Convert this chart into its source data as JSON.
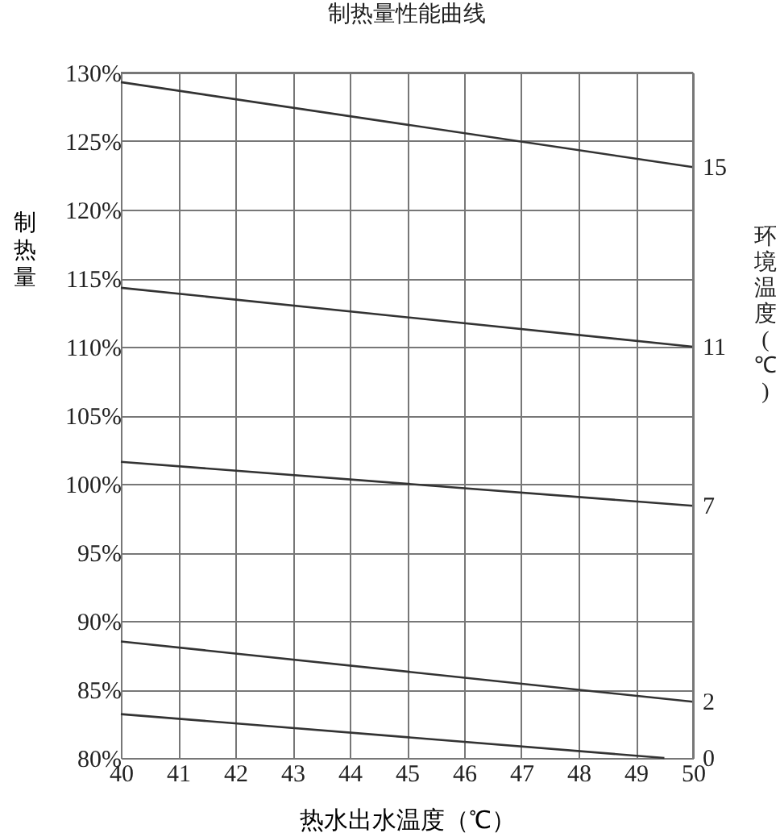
{
  "chart_data": {
    "type": "line",
    "title": "制热量性能曲线",
    "xlabel": "热水出水温度（℃）",
    "ylabel": "制热量",
    "legend_title": "环境温度(℃)",
    "xlim": [
      40,
      50
    ],
    "xticks": [
      40,
      41,
      42,
      43,
      44,
      45,
      46,
      47,
      48,
      49,
      50
    ],
    "ylim": [
      80,
      130
    ],
    "yticks": [
      {
        "value": 80,
        "label": "80%"
      },
      {
        "value": 85,
        "label": "85%"
      },
      {
        "value": 90,
        "label": "90%"
      },
      {
        "value": 95,
        "label": "95%"
      },
      {
        "value": 100,
        "label": "100%"
      },
      {
        "value": 105,
        "label": "105%"
      },
      {
        "value": 110,
        "label": "110%"
      },
      {
        "value": 115,
        "label": "115%"
      },
      {
        "value": 120,
        "label": "120%"
      },
      {
        "value": 125,
        "label": "125%"
      },
      {
        "value": 130,
        "label": "130%"
      }
    ],
    "grid": true,
    "legend": "right",
    "marker": "none",
    "line_style": "solid",
    "series": [
      {
        "name": "15",
        "color": "#333333",
        "x": [
          40,
          50
        ],
        "values": [
          129.3,
          123.1
        ]
      },
      {
        "name": "11",
        "color": "#333333",
        "x": [
          40,
          50
        ],
        "values": [
          114.3,
          110
        ]
      },
      {
        "name": "7",
        "color": "#333333",
        "x": [
          40,
          50
        ],
        "values": [
          101.6,
          98.4
        ]
      },
      {
        "name": "2",
        "color": "#333333",
        "x": [
          40,
          50
        ],
        "values": [
          88.5,
          84.1
        ]
      },
      {
        "name": "0",
        "color": "#333333",
        "x": [
          40,
          49.5
        ],
        "values": [
          83.2,
          80
        ]
      }
    ]
  }
}
